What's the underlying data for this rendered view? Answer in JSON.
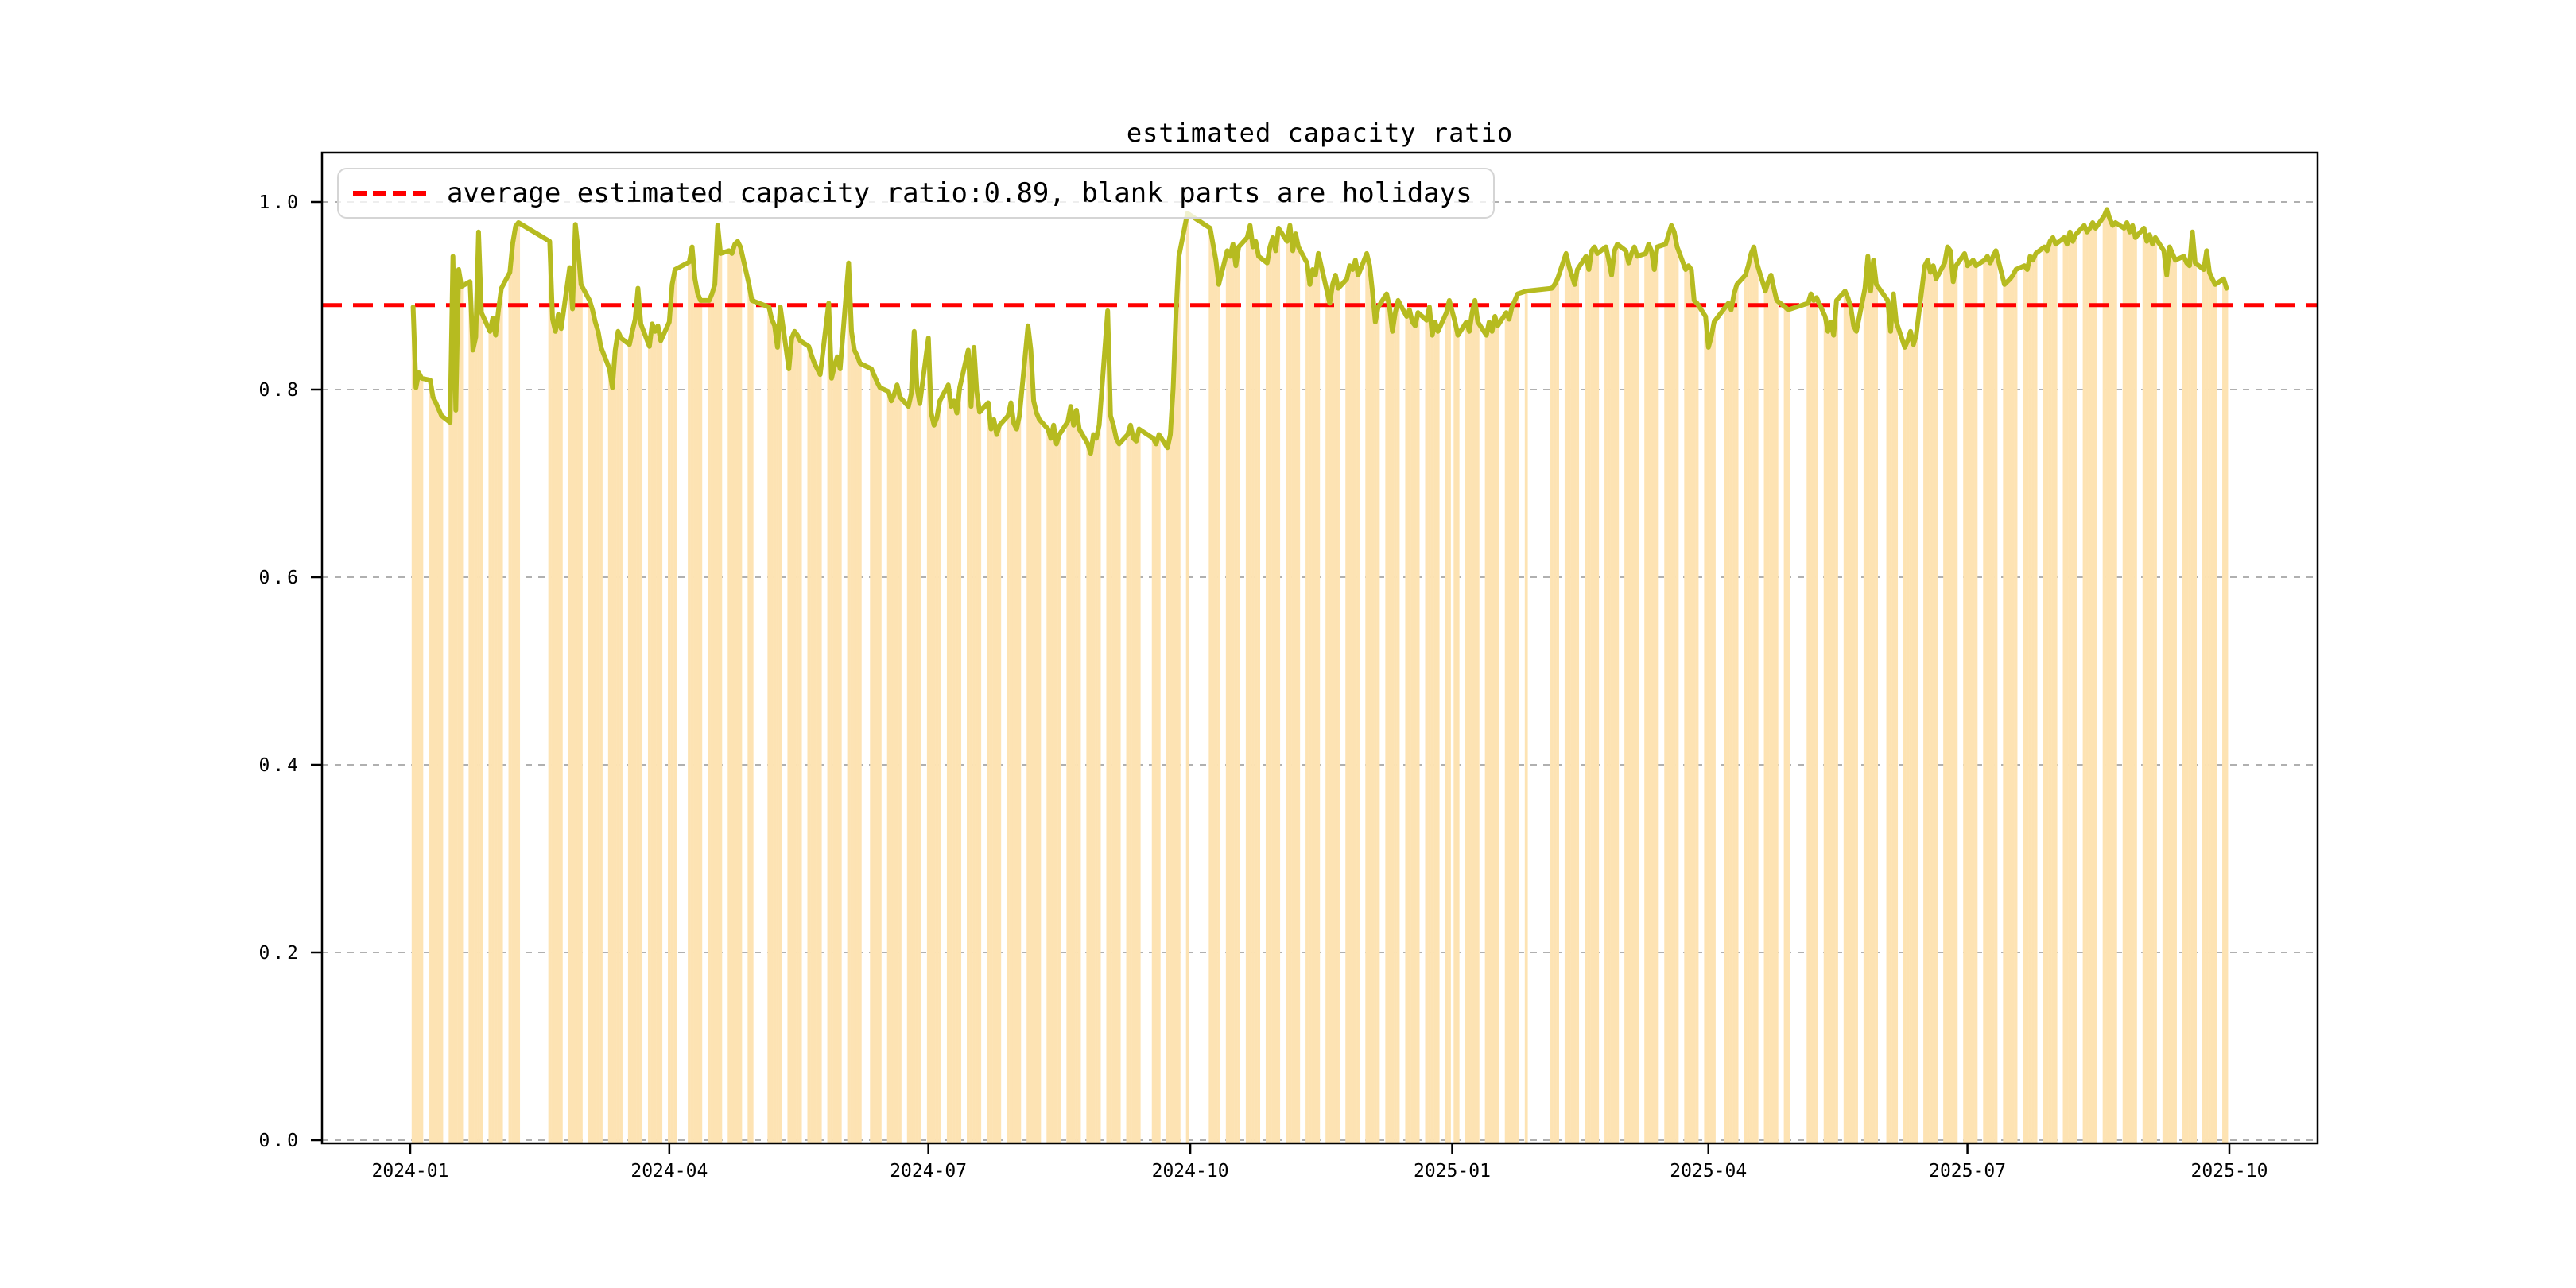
{
  "chart_data": {
    "type": "line",
    "title": "estimated capacity ratio",
    "legend_label": "average estimated capacity ratio:0.89, blank parts are holidays",
    "average": 0.89,
    "ylabel": "",
    "xlabel": "",
    "ylim": [
      0,
      1.05
    ],
    "yticks": [
      0.0,
      0.2,
      0.4,
      0.6,
      0.8,
      1.0
    ],
    "xticks": [
      {
        "label": "2024-01",
        "date": "2024-01-01"
      },
      {
        "label": "2024-04",
        "date": "2024-04-01"
      },
      {
        "label": "2024-07",
        "date": "2024-07-01"
      },
      {
        "label": "2024-10",
        "date": "2024-10-01"
      },
      {
        "label": "2025-01",
        "date": "2025-01-01"
      },
      {
        "label": "2025-04",
        "date": "2025-04-01"
      },
      {
        "label": "2025-07",
        "date": "2025-07-01"
      },
      {
        "label": "2025-10",
        "date": "2025-10-01"
      }
    ],
    "x_axis_range": [
      "2023-12-01",
      "2025-11-01"
    ],
    "grid": true,
    "legend_position": "upper left",
    "colors": {
      "line": "#b6bb20",
      "bar_fill": "#fde3b3",
      "average_line": "#ff0000",
      "grid": "#b0b0b0",
      "spine": "#000000",
      "text": "#000000",
      "legend_border": "#d5d5d5"
    },
    "holidays": [
      "2024-01-01",
      "2024-02-09..2024-02-16",
      "2024-04-04..2024-04-05",
      "2024-05-01..2024-05-03",
      "2024-06-10",
      "2024-09-16..2024-09-17",
      "2024-10-01..2024-10-07",
      "2025-01-01",
      "2025-01-28..2025-02-04",
      "2025-04-04",
      "2025-05-01..2025-05-05",
      "2025-06-02"
    ],
    "weeks": [
      {
        "week_start": "2024-01-01",
        "values": [
          null,
          0.888,
          0.802,
          0.818,
          0.812
        ]
      },
      {
        "week_start": "2024-01-08",
        "values": [
          0.81,
          0.792,
          0.786,
          0.779,
          0.772
        ]
      },
      {
        "week_start": "2024-01-15",
        "values": [
          0.765,
          0.942,
          0.778,
          0.928,
          0.91
        ]
      },
      {
        "week_start": "2024-01-22",
        "values": [
          0.915,
          0.842,
          0.856,
          0.968,
          0.882
        ]
      },
      {
        "week_start": "2024-01-29",
        "values": [
          0.862,
          0.876,
          0.858,
          0.885,
          0.908
        ]
      },
      {
        "week_start": "2024-02-05",
        "values": [
          0.925,
          0.956,
          0.974,
          0.978,
          null
        ]
      },
      {
        "week_start": "2024-02-12",
        "values": [
          null,
          null,
          null,
          null,
          null
        ]
      },
      {
        "week_start": "2024-02-19",
        "values": [
          0.958,
          0.875,
          0.862,
          0.88,
          0.865
        ]
      },
      {
        "week_start": "2024-02-26",
        "values": [
          0.93,
          0.886,
          0.976,
          0.948,
          0.912
        ]
      },
      {
        "week_start": "2024-03-04",
        "values": [
          0.895,
          0.885,
          0.872,
          0.862,
          0.845
        ]
      },
      {
        "week_start": "2024-03-11",
        "values": [
          0.822,
          0.802,
          0.842,
          0.862,
          0.855
        ]
      },
      {
        "week_start": "2024-03-18",
        "values": [
          0.848,
          0.862,
          0.875,
          0.908,
          0.87
        ]
      },
      {
        "week_start": "2024-03-25",
        "values": [
          0.846,
          0.87,
          0.862,
          0.868,
          0.852
        ]
      },
      {
        "week_start": "2024-04-01",
        "values": [
          0.872,
          0.912,
          0.928,
          null,
          null
        ]
      },
      {
        "week_start": "2024-04-08",
        "values": [
          0.936,
          0.952,
          0.918,
          0.902,
          0.895
        ]
      },
      {
        "week_start": "2024-04-15",
        "values": [
          0.895,
          0.902,
          0.912,
          0.975,
          0.945
        ]
      },
      {
        "week_start": "2024-04-22",
        "values": [
          0.948,
          0.945,
          0.955,
          0.958,
          0.952
        ]
      },
      {
        "week_start": "2024-04-29",
        "values": [
          0.912,
          0.895,
          null,
          null,
          null
        ]
      },
      {
        "week_start": "2024-05-06",
        "values": [
          0.888,
          0.875,
          0.868,
          0.845,
          0.888
        ]
      },
      {
        "week_start": "2024-05-13",
        "values": [
          0.822,
          0.855,
          0.862,
          0.858,
          0.852
        ]
      },
      {
        "week_start": "2024-05-20",
        "values": [
          0.846,
          0.836,
          0.828,
          0.822,
          0.816
        ]
      },
      {
        "week_start": "2024-05-27",
        "values": [
          0.892,
          0.812,
          0.825,
          0.835,
          0.822
        ]
      },
      {
        "week_start": "2024-06-03",
        "values": [
          0.935,
          0.862,
          0.842,
          0.836,
          0.828
        ]
      },
      {
        "week_start": "2024-06-10",
        "values": [
          null,
          0.822,
          0.815,
          0.808,
          0.802
        ]
      },
      {
        "week_start": "2024-06-17",
        "values": [
          0.798,
          0.788,
          0.795,
          0.805,
          0.792
        ]
      },
      {
        "week_start": "2024-06-24",
        "values": [
          0.782,
          0.796,
          0.862,
          0.802,
          0.785
        ]
      },
      {
        "week_start": "2024-07-01",
        "values": [
          0.855,
          0.775,
          0.762,
          0.77,
          0.788
        ]
      },
      {
        "week_start": "2024-07-08",
        "values": [
          0.805,
          0.782,
          0.788,
          0.775,
          0.802
        ]
      },
      {
        "week_start": "2024-07-15",
        "values": [
          0.842,
          0.782,
          0.845,
          0.798,
          0.776
        ]
      },
      {
        "week_start": "2024-07-22",
        "values": [
          0.786,
          0.758,
          0.768,
          0.752,
          0.762
        ]
      },
      {
        "week_start": "2024-07-29",
        "values": [
          0.772,
          0.786,
          0.764,
          0.758,
          0.772
        ]
      },
      {
        "week_start": "2024-08-05",
        "values": [
          0.868,
          0.842,
          0.788,
          0.775,
          0.768
        ]
      },
      {
        "week_start": "2024-08-12",
        "values": [
          0.758,
          0.748,
          0.762,
          0.742,
          0.752
        ]
      },
      {
        "week_start": "2024-08-19",
        "values": [
          0.766,
          0.782,
          0.762,
          0.778,
          0.758
        ]
      },
      {
        "week_start": "2024-08-26",
        "values": [
          0.742,
          0.732,
          0.752,
          0.748,
          0.762
        ]
      },
      {
        "week_start": "2024-09-02",
        "values": [
          0.884,
          0.772,
          0.762,
          0.748,
          0.742
        ]
      },
      {
        "week_start": "2024-09-09",
        "values": [
          0.752,
          0.762,
          0.748,
          0.745,
          0.758
        ]
      },
      {
        "week_start": "2024-09-16",
        "values": [
          null,
          null,
          0.748,
          0.742,
          0.752
        ]
      },
      {
        "week_start": "2024-09-23",
        "values": [
          0.738,
          0.752,
          0.802,
          0.882,
          0.942
        ]
      },
      {
        "week_start": "2024-09-30",
        "values": [
          0.988,
          null,
          null,
          null,
          null
        ]
      },
      {
        "week_start": "2024-10-07",
        "values": [
          null,
          0.972,
          0.955,
          0.938,
          0.912
        ]
      },
      {
        "week_start": "2024-10-14",
        "values": [
          0.948,
          0.942,
          0.955,
          0.932,
          0.952
        ]
      },
      {
        "week_start": "2024-10-21",
        "values": [
          0.962,
          0.975,
          0.952,
          0.958,
          0.942
        ]
      },
      {
        "week_start": "2024-10-28",
        "values": [
          0.935,
          0.952,
          0.962,
          0.948,
          0.972
        ]
      },
      {
        "week_start": "2024-11-04",
        "values": [
          0.958,
          0.975,
          0.948,
          0.966,
          0.952
        ]
      },
      {
        "week_start": "2024-11-11",
        "values": [
          0.935,
          0.912,
          0.928,
          0.922,
          0.945
        ]
      },
      {
        "week_start": "2024-11-18",
        "values": [
          0.905,
          0.892,
          0.912,
          0.922,
          0.908
        ]
      },
      {
        "week_start": "2024-11-25",
        "values": [
          0.918,
          0.932,
          0.928,
          0.938,
          0.922
        ]
      },
      {
        "week_start": "2024-12-02",
        "values": [
          0.945,
          0.932,
          0.905,
          0.872,
          0.888
        ]
      },
      {
        "week_start": "2024-12-09",
        "values": [
          0.902,
          0.888,
          0.862,
          0.882,
          0.895
        ]
      },
      {
        "week_start": "2024-12-16",
        "values": [
          0.878,
          0.885,
          0.872,
          0.868,
          0.882
        ]
      },
      {
        "week_start": "2024-12-23",
        "values": [
          0.874,
          0.888,
          0.858,
          0.872,
          0.862
        ]
      },
      {
        "week_start": "2024-12-30",
        "values": [
          0.882,
          0.895,
          null,
          0.872,
          0.858
        ]
      },
      {
        "week_start": "2025-01-06",
        "values": [
          0.872,
          0.862,
          0.882,
          0.895,
          0.872
        ]
      },
      {
        "week_start": "2025-01-13",
        "values": [
          0.858,
          0.872,
          0.862,
          0.878,
          0.868
        ]
      },
      {
        "week_start": "2025-01-20",
        "values": [
          0.882,
          0.875,
          0.888,
          0.895,
          0.902
        ]
      },
      {
        "week_start": "2025-01-27",
        "values": [
          0.905,
          null,
          null,
          null,
          null
        ]
      },
      {
        "week_start": "2025-02-03",
        "values": [
          null,
          null,
          0.908,
          0.912,
          0.918
        ]
      },
      {
        "week_start": "2025-02-10",
        "values": [
          0.945,
          0.932,
          0.922,
          0.912,
          0.928
        ]
      },
      {
        "week_start": "2025-02-17",
        "values": [
          0.942,
          0.928,
          0.948,
          0.952,
          0.945
        ]
      },
      {
        "week_start": "2025-02-24",
        "values": [
          0.952,
          0.938,
          0.922,
          0.948,
          0.955
        ]
      },
      {
        "week_start": "2025-03-03",
        "values": [
          0.948,
          0.935,
          0.945,
          0.952,
          0.942
        ]
      },
      {
        "week_start": "2025-03-10",
        "values": [
          0.945,
          0.955,
          0.948,
          0.928,
          0.952
        ]
      },
      {
        "week_start": "2025-03-17",
        "values": [
          0.955,
          0.965,
          0.975,
          0.968,
          0.952
        ]
      },
      {
        "week_start": "2025-03-24",
        "values": [
          0.928,
          0.932,
          0.928,
          0.895,
          0.892
        ]
      },
      {
        "week_start": "2025-03-31",
        "values": [
          0.878,
          0.845,
          0.856,
          0.872,
          null
        ]
      },
      {
        "week_start": "2025-04-07",
        "values": [
          0.888,
          0.892,
          0.885,
          0.902,
          0.912
        ]
      },
      {
        "week_start": "2025-04-14",
        "values": [
          0.922,
          0.932,
          0.945,
          0.952,
          0.935
        ]
      },
      {
        "week_start": "2025-04-21",
        "values": [
          0.905,
          0.915,
          0.922,
          0.908,
          0.895
        ]
      },
      {
        "week_start": "2025-04-28",
        "values": [
          0.888,
          0.885,
          null,
          null,
          null
        ]
      },
      {
        "week_start": "2025-05-05",
        "values": [
          null,
          0.892,
          0.902,
          0.895,
          0.898
        ]
      },
      {
        "week_start": "2025-05-12",
        "values": [
          0.878,
          0.862,
          0.872,
          0.858,
          0.895
        ]
      },
      {
        "week_start": "2025-05-19",
        "values": [
          0.905,
          0.898,
          0.888,
          0.868,
          0.862
        ]
      },
      {
        "week_start": "2025-05-26",
        "values": [
          0.908,
          0.942,
          0.905,
          0.938,
          0.912
        ]
      },
      {
        "week_start": "2025-06-02",
        "values": [
          null,
          0.895,
          0.862,
          0.902,
          0.872
        ]
      },
      {
        "week_start": "2025-06-09",
        "values": [
          0.845,
          0.852,
          0.862,
          0.848,
          0.858
        ]
      },
      {
        "week_start": "2025-06-16",
        "values": [
          0.932,
          0.938,
          0.925,
          0.932,
          0.918
        ]
      },
      {
        "week_start": "2025-06-23",
        "values": [
          0.935,
          0.952,
          0.948,
          0.915,
          0.932
        ]
      },
      {
        "week_start": "2025-06-30",
        "values": [
          0.945,
          0.932,
          0.935,
          0.938,
          0.932
        ]
      },
      {
        "week_start": "2025-07-07",
        "values": [
          0.938,
          0.942,
          0.935,
          0.942,
          0.948
        ]
      },
      {
        "week_start": "2025-07-14",
        "values": [
          0.912,
          0.915,
          0.918,
          0.922,
          0.928
        ]
      },
      {
        "week_start": "2025-07-21",
        "values": [
          0.932,
          0.928,
          0.942,
          0.938,
          0.945
        ]
      },
      {
        "week_start": "2025-07-28",
        "values": [
          0.952,
          0.948,
          0.958,
          0.962,
          0.955
        ]
      },
      {
        "week_start": "2025-08-04",
        "values": [
          0.962,
          0.955,
          0.968,
          0.958,
          0.965
        ]
      },
      {
        "week_start": "2025-08-11",
        "values": [
          0.975,
          0.968,
          0.972,
          0.978,
          0.972
        ]
      },
      {
        "week_start": "2025-08-18",
        "values": [
          0.985,
          0.992,
          0.982,
          0.975,
          0.978
        ]
      },
      {
        "week_start": "2025-08-25",
        "values": [
          0.972,
          0.978,
          0.968,
          0.975,
          0.962
        ]
      },
      {
        "week_start": "2025-09-01",
        "values": [
          0.972,
          0.958,
          0.965,
          0.955,
          0.962
        ]
      },
      {
        "week_start": "2025-09-08",
        "values": [
          0.948,
          0.922,
          0.952,
          0.945,
          0.938
        ]
      },
      {
        "week_start": "2025-09-15",
        "values": [
          0.942,
          0.935,
          0.932,
          0.968,
          0.935
        ]
      },
      {
        "week_start": "2025-09-22",
        "values": [
          0.928,
          0.948,
          0.925,
          0.918,
          0.912
        ]
      },
      {
        "week_start": "2025-09-29",
        "values": [
          0.918,
          0.908,
          null,
          null,
          null
        ]
      }
    ]
  }
}
